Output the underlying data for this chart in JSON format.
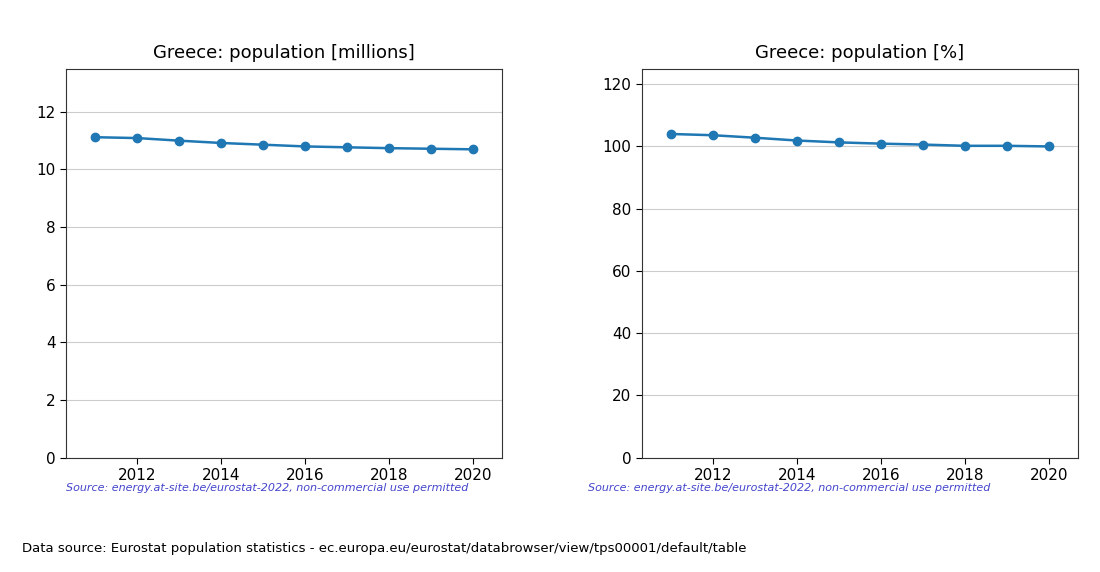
{
  "years": [
    2011,
    2012,
    2013,
    2014,
    2015,
    2016,
    2017,
    2018,
    2019,
    2020
  ],
  "pop_millions": [
    11.12,
    11.09,
    11.0,
    10.92,
    10.86,
    10.8,
    10.77,
    10.74,
    10.72,
    10.7
  ],
  "pop_pct": [
    104.0,
    103.6,
    102.8,
    101.9,
    101.3,
    100.9,
    100.6,
    100.2,
    100.2,
    100.0
  ],
  "title_millions": "Greece: population [millions]",
  "title_pct": "Greece: population [%]",
  "source_text": "Source: energy.at-site.be/eurostat-2022, non-commercial use permitted",
  "footer_text": "Data source: Eurostat population statistics - ec.europa.eu/eurostat/databrowser/view/tps00001/default/table",
  "line_color": "#1f77b4",
  "source_color": "#4444cc",
  "footer_color": "#000000",
  "ylim_millions": [
    0,
    13.5
  ],
  "ylim_pct": [
    0,
    125
  ],
  "yticks_millions": [
    0,
    2,
    4,
    6,
    8,
    10,
    12
  ],
  "yticks_pct": [
    0,
    20,
    40,
    60,
    80,
    100,
    120
  ],
  "bg_color": "#ffffff"
}
